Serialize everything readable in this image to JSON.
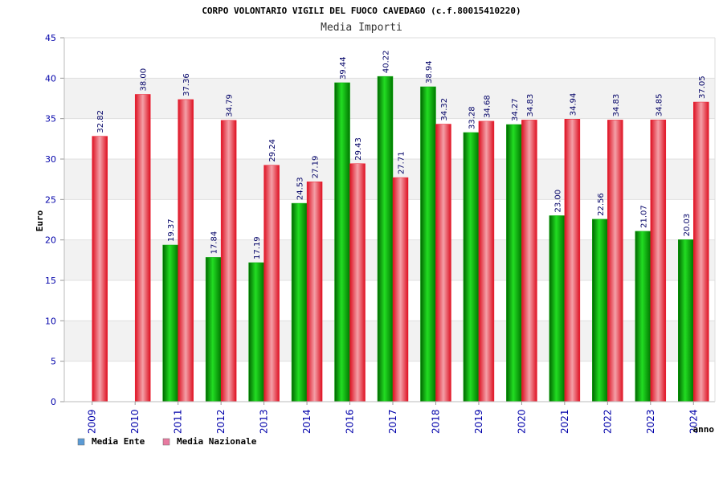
{
  "chart_data": {
    "type": "bar",
    "title": "CORPO VOLONTARIO VIGILI DEL FUOCO CAVEDAGO (c.f.80015410220)",
    "subtitle": "Media Importi",
    "xlabel": "anno",
    "ylabel": "Euro",
    "ylim": [
      0,
      45
    ],
    "ytick_step": 5,
    "grid": true,
    "legend_position": "bottom-left",
    "categories": [
      "2009",
      "2010",
      "2011",
      "2012",
      "2013",
      "2014",
      "2016",
      "2017",
      "2018",
      "2019",
      "2020",
      "2021",
      "2022",
      "2023",
      "2024"
    ],
    "series": [
      {
        "name": "Media Ente",
        "color": "#00aa00",
        "legend_color": "#5b9bd5",
        "values": [
          null,
          null,
          19.37,
          17.84,
          17.19,
          24.53,
          39.44,
          40.22,
          38.94,
          33.28,
          34.27,
          23.0,
          22.56,
          21.07,
          20.03
        ]
      },
      {
        "name": "Media Nazionale",
        "color": "#ee1c2e",
        "legend_color": "#e87aa0",
        "values": [
          32.82,
          38.0,
          37.36,
          34.79,
          29.24,
          27.19,
          29.43,
          27.71,
          34.32,
          34.68,
          34.83,
          34.94,
          34.83,
          34.85,
          37.05
        ]
      }
    ]
  }
}
